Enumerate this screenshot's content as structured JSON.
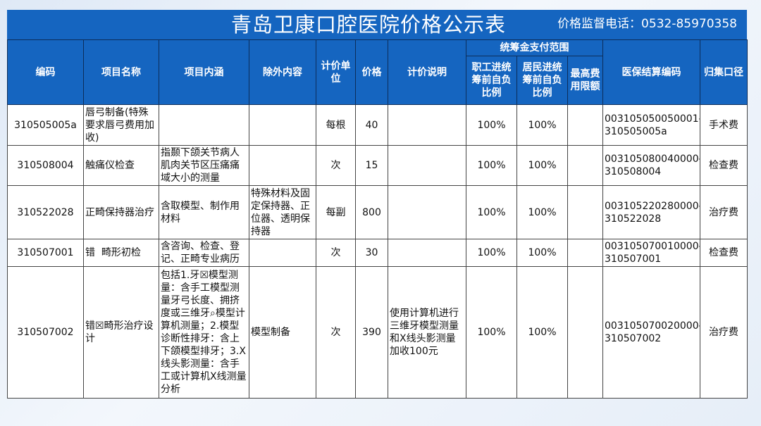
{
  "header": {
    "title": "青岛卫康口腔医院价格公示表",
    "phone": "价格监督电话：0532-85970358"
  },
  "columns": {
    "code": "编码",
    "name": "项目名称",
    "content": "项目内涵",
    "except": "除外内容",
    "unit": "计价单位",
    "price": "价格",
    "note": "计价说明",
    "fund_group": "统筹金支付范围",
    "worker_ratio": "职工进统筹前自负比例",
    "resident_ratio": "居民进统筹前自负比例",
    "max_limit": "最高费用限额",
    "insurance_code": "医保结算编码",
    "category": "归集口径"
  },
  "rows": [
    {
      "code": "310505005a",
      "name": "唇弓制备(特殊要求唇弓费用加收)",
      "content": "",
      "except": "",
      "unit": "每根",
      "price": "40",
      "note": "",
      "worker_ratio": "100%",
      "resident_ratio": "100%",
      "max_limit": "",
      "insurance_code": "003105050050001-310505005a",
      "category": "手术费"
    },
    {
      "code": "310508004",
      "name": "触痛仪检查",
      "content": "指颞下颌关节病人肌肉关节区压痛痛域大小的测量",
      "except": "",
      "unit": "次",
      "price": "15",
      "note": "",
      "worker_ratio": "100%",
      "resident_ratio": "100%",
      "max_limit": "",
      "insurance_code": "003105080040000-310508004",
      "category": "检查费"
    },
    {
      "code": "310522028",
      "name": "正畸保持器治疗",
      "content": "含取模型、制作用材料",
      "except": "特殊材料及固定保持器、正位器、透明保持器",
      "unit": "每副",
      "price": "800",
      "note": "",
      "worker_ratio": "100%",
      "resident_ratio": "100%",
      "max_limit": "",
      "insurance_code": "003105220280000-310522028",
      "category": "治疗费"
    },
    {
      "code": "310507001",
      "name": "错  畸形初检",
      "content": "含咨询、检查、登记、正畸专业病历",
      "except": "",
      "unit": "次",
      "price": "30",
      "note": "",
      "worker_ratio": "100%",
      "resident_ratio": "100%",
      "max_limit": "",
      "insurance_code": "003105070010000-310507001",
      "category": "检查费"
    },
    {
      "code": "310507002",
      "name": "错☒畸形治疗设计",
      "content": "包括1.牙☒模型测量：含手工模型测量牙弓长度、拥挤度或三维牙⌕模型计算机测量；2.模型诊断性排牙：含上下颌模型排牙；3.X线头影测量：含手工或计算机X线测量分析",
      "except": "模型制备",
      "unit": "次",
      "price": "390",
      "note": "使用计算机进行三维牙模型测量和X线头影测量加收100元",
      "worker_ratio": "100%",
      "resident_ratio": "100%",
      "max_limit": "",
      "insurance_code": "003105070020000-310507002",
      "category": "治疗费"
    }
  ]
}
